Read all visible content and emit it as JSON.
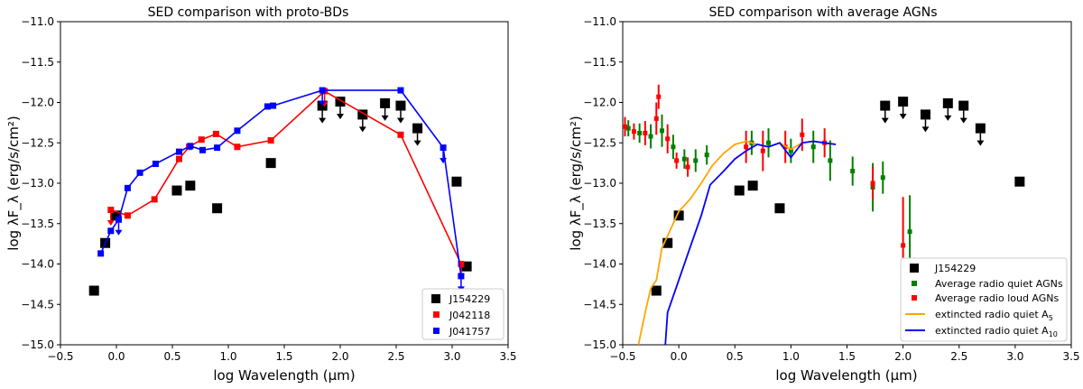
{
  "chart_data": [
    {
      "type": "scatter",
      "title": "SED comparison with proto-BDs",
      "xlabel": "log Wavelength (μm)",
      "ylabel": "log λF_λ (erg/s/cm²)",
      "xlim": [
        -0.5,
        3.5
      ],
      "ylim": [
        -15.0,
        -11.0
      ],
      "xticks": [
        "-0.5",
        "0.0",
        "0.5",
        "1.0",
        "1.5",
        "2.0",
        "2.5",
        "3.0",
        "3.5"
      ],
      "yticks": [
        "-15.0",
        "-14.5",
        "-14.0",
        "-13.5",
        "-13.0",
        "-12.5",
        "-12.0",
        "-11.5",
        "-11.0"
      ],
      "legend_position": "lower-right",
      "series": [
        {
          "name": "J154229",
          "color": "#000000",
          "marker": "square-large",
          "points": [
            [
              -0.2,
              -14.33
            ],
            [
              -0.1,
              -13.74
            ],
            [
              0.0,
              -13.4
            ],
            [
              0.54,
              -13.09
            ],
            [
              0.66,
              -13.03
            ],
            [
              0.9,
              -13.31
            ],
            [
              1.38,
              -12.75
            ],
            [
              3.04,
              -12.98
            ],
            [
              3.13,
              -14.03
            ]
          ],
          "upper_limits": [
            [
              1.84,
              -12.04
            ],
            [
              2.0,
              -11.99
            ],
            [
              2.2,
              -12.15
            ],
            [
              2.4,
              -12.01
            ],
            [
              2.54,
              -12.04
            ],
            [
              2.69,
              -12.32
            ]
          ]
        },
        {
          "name": "J042118",
          "color": "#ff0000",
          "marker": "square",
          "line": true,
          "points": [
            [
              -0.05,
              -13.33
            ],
            [
              0.1,
              -13.4
            ],
            [
              0.34,
              -13.2
            ],
            [
              0.56,
              -12.7
            ],
            [
              0.65,
              -12.55
            ],
            [
              0.76,
              -12.46
            ],
            [
              0.89,
              -12.39
            ],
            [
              1.08,
              -12.55
            ],
            [
              1.38,
              -12.47
            ],
            [
              1.86,
              -11.86
            ],
            [
              2.54,
              -12.4
            ],
            [
              3.08,
              -14.0
            ]
          ],
          "upper_limits": [
            [
              -0.05,
              -13.33
            ],
            [
              1.86,
              -11.86
            ],
            [
              3.08,
              -14.0
            ]
          ]
        },
        {
          "name": "J041757",
          "color": "#0000ff",
          "marker": "square",
          "line": true,
          "points": [
            [
              -0.14,
              -13.87
            ],
            [
              -0.05,
              -13.59
            ],
            [
              0.02,
              -13.45
            ],
            [
              0.1,
              -13.06
            ],
            [
              0.21,
              -12.87
            ],
            [
              0.35,
              -12.76
            ],
            [
              0.56,
              -12.61
            ],
            [
              0.66,
              -12.54
            ],
            [
              0.77,
              -12.59
            ],
            [
              0.9,
              -12.56
            ],
            [
              1.08,
              -12.35
            ],
            [
              1.35,
              -12.05
            ],
            [
              1.4,
              -12.04
            ],
            [
              1.84,
              -11.85
            ],
            [
              2.54,
              -11.85
            ],
            [
              2.92,
              -12.56
            ],
            [
              3.08,
              -14.15
            ]
          ],
          "upper_limits": [
            [
              0.02,
              -13.45
            ],
            [
              1.84,
              -11.85
            ],
            [
              2.92,
              -12.56
            ],
            [
              3.08,
              -14.15
            ]
          ]
        }
      ]
    },
    {
      "type": "scatter",
      "title": "SED comparison with average AGNs",
      "xlabel": "log Wavelength (μm)",
      "ylabel": "log λF_λ (erg/s/cm²)",
      "xlim": [
        -0.5,
        3.5
      ],
      "ylim": [
        -15.0,
        -11.0
      ],
      "xticks": [
        "-0.5",
        "0.0",
        "0.5",
        "1.0",
        "1.5",
        "2.0",
        "2.5",
        "3.0",
        "3.5"
      ],
      "yticks": [
        "-15.0",
        "-14.5",
        "-14.0",
        "-13.5",
        "-13.0",
        "-12.5",
        "-12.0",
        "-11.5",
        "-11.0"
      ],
      "legend_position": "lower-right",
      "series": [
        {
          "name": "J154229",
          "color": "#000000",
          "marker": "square-large",
          "points": [
            [
              -0.2,
              -14.33
            ],
            [
              -0.1,
              -13.74
            ],
            [
              0.0,
              -13.4
            ],
            [
              0.54,
              -13.09
            ],
            [
              0.66,
              -13.03
            ],
            [
              0.9,
              -13.31
            ],
            [
              3.04,
              -12.98
            ],
            [
              3.13,
              -14.03
            ]
          ],
          "upper_limits": [
            [
              1.84,
              -12.04
            ],
            [
              2.0,
              -11.99
            ],
            [
              2.2,
              -12.15
            ],
            [
              2.4,
              -12.01
            ],
            [
              2.54,
              -12.04
            ],
            [
              2.69,
              -12.32
            ]
          ]
        },
        {
          "name": "Average radio quiet AGNs",
          "color": "#008000",
          "marker": "square-small",
          "points": [
            [
              -0.45,
              -12.32
            ],
            [
              -0.35,
              -12.38
            ],
            [
              -0.25,
              -12.42
            ],
            [
              -0.15,
              -12.35
            ],
            [
              -0.05,
              -12.55
            ],
            [
              0.05,
              -12.7
            ],
            [
              0.15,
              -12.72
            ],
            [
              0.25,
              -12.65
            ],
            [
              0.65,
              -12.5
            ],
            [
              0.8,
              -12.5
            ],
            [
              1.0,
              -12.6
            ],
            [
              1.2,
              -12.55
            ],
            [
              1.35,
              -12.72
            ],
            [
              1.55,
              -12.85
            ],
            [
              1.73,
              -13.05
            ],
            [
              1.82,
              -12.93
            ],
            [
              2.06,
              -13.6
            ]
          ],
          "errors": [
            0.1,
            0.12,
            0.15,
            0.2,
            0.15,
            0.12,
            0.14,
            0.12,
            0.15,
            0.18,
            0.15,
            0.2,
            0.25,
            0.18,
            0.3,
            0.2,
            0.45
          ]
        },
        {
          "name": "Average radio loud AGNs",
          "color": "#ff0000",
          "marker": "square-small",
          "points": [
            [
              -0.48,
              -12.3
            ],
            [
              -0.4,
              -12.36
            ],
            [
              -0.3,
              -12.38
            ],
            [
              -0.2,
              -12.2
            ],
            [
              -0.18,
              -11.93
            ],
            [
              -0.1,
              -12.45
            ],
            [
              -0.02,
              -12.72
            ],
            [
              0.08,
              -12.8
            ],
            [
              0.6,
              -12.55
            ],
            [
              0.75,
              -12.6
            ],
            [
              0.95,
              -12.55
            ],
            [
              1.1,
              -12.4
            ],
            [
              1.3,
              -12.5
            ],
            [
              1.73,
              -13.0
            ],
            [
              2.0,
              -13.77
            ]
          ],
          "errors": [
            0.12,
            0.1,
            0.15,
            0.2,
            0.15,
            0.18,
            0.1,
            0.12,
            0.2,
            0.25,
            0.2,
            0.2,
            0.18,
            0.2,
            0.6
          ]
        },
        {
          "name": "extincted radio quiet A₅",
          "color": "#ffa500",
          "marker": "line",
          "points": [
            [
              -0.36,
              -15.0
            ],
            [
              -0.3,
              -14.6
            ],
            [
              -0.25,
              -14.3
            ],
            [
              -0.2,
              -14.2
            ],
            [
              -0.15,
              -13.8
            ],
            [
              -0.1,
              -13.65
            ],
            [
              -0.05,
              -13.5
            ],
            [
              0.0,
              -13.35
            ],
            [
              0.1,
              -13.2
            ],
            [
              0.2,
              -13.0
            ],
            [
              0.3,
              -12.78
            ],
            [
              0.4,
              -12.63
            ],
            [
              0.5,
              -12.52
            ],
            [
              0.6,
              -12.48
            ],
            [
              0.7,
              -12.52
            ],
            [
              0.8,
              -12.55
            ],
            [
              0.9,
              -12.5
            ],
            [
              1.0,
              -12.58
            ],
            [
              1.1,
              -12.5
            ],
            [
              1.2,
              -12.48
            ],
            [
              1.3,
              -12.5
            ],
            [
              1.4,
              -12.52
            ]
          ]
        },
        {
          "name": "extincted radio quiet A₁₀",
          "color": "#0000ff",
          "marker": "line",
          "points": [
            [
              -0.12,
              -15.0
            ],
            [
              -0.1,
              -14.6
            ],
            [
              0.0,
              -14.2
            ],
            [
              0.1,
              -13.8
            ],
            [
              0.2,
              -13.4
            ],
            [
              0.28,
              -13.02
            ],
            [
              0.4,
              -12.85
            ],
            [
              0.5,
              -12.7
            ],
            [
              0.6,
              -12.6
            ],
            [
              0.7,
              -12.52
            ],
            [
              0.8,
              -12.55
            ],
            [
              0.9,
              -12.5
            ],
            [
              1.0,
              -12.68
            ],
            [
              1.1,
              -12.5
            ],
            [
              1.2,
              -12.48
            ],
            [
              1.3,
              -12.5
            ],
            [
              1.4,
              -12.52
            ]
          ]
        }
      ]
    }
  ],
  "legends": {
    "left": [
      "J154229",
      "J042118",
      "J041757"
    ],
    "right": [
      "J154229",
      "Average radio quiet AGNs",
      "Average radio loud AGNs",
      "extincted radio quiet A",
      "extincted radio quiet A"
    ],
    "right_subscripts": [
      "",
      "",
      "",
      "5",
      "10"
    ]
  }
}
